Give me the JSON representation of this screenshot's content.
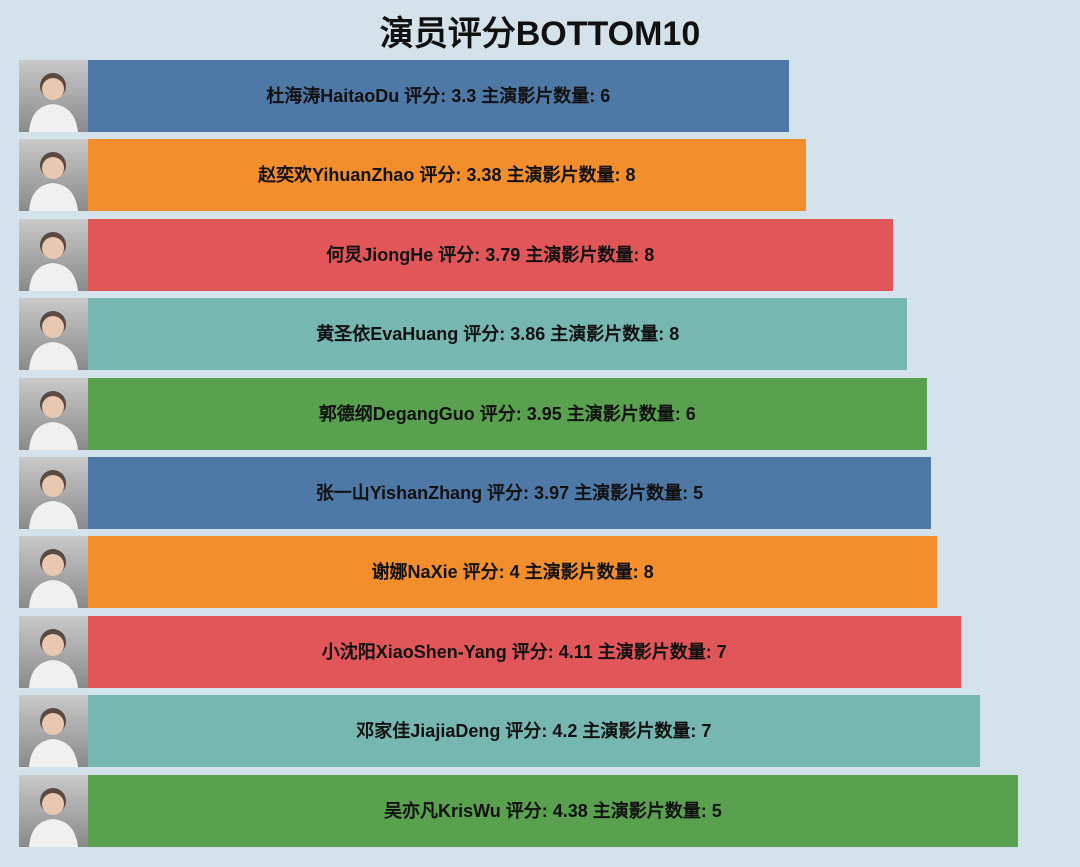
{
  "chart_data": {
    "type": "bar",
    "orientation": "horizontal",
    "title": "演员评分BOTTOM10",
    "xlim": [
      0,
      4.38
    ],
    "grid": false,
    "colors": [
      "#4e79a7",
      "#f28e2b",
      "#e15759",
      "#76b7b2",
      "#59a14f"
    ],
    "items": [
      {
        "name": "杜海涛HaitaoDu",
        "rating": 3.3,
        "movies": 6,
        "label": "杜海涛HaitaoDu 评分: 3.3 主演影片数量: 6",
        "color": "#4e79a7"
      },
      {
        "name": "赵奕欢YihuanZhao",
        "rating": 3.38,
        "movies": 8,
        "label": "赵奕欢YihuanZhao 评分: 3.38 主演影片数量: 8",
        "color": "#f28e2b"
      },
      {
        "name": "何炅JiongHe",
        "rating": 3.79,
        "movies": 8,
        "label": "何炅JiongHe 评分: 3.79 主演影片数量: 8",
        "color": "#e15759"
      },
      {
        "name": "黄圣依EvaHuang",
        "rating": 3.86,
        "movies": 8,
        "label": "黄圣依EvaHuang 评分: 3.86 主演影片数量: 8",
        "color": "#76b7b2"
      },
      {
        "name": "郭德纲DegangGuo",
        "rating": 3.95,
        "movies": 6,
        "label": "郭德纲DegangGuo 评分: 3.95 主演影片数量: 6",
        "color": "#59a14f"
      },
      {
        "name": "张一山YishanZhang",
        "rating": 3.97,
        "movies": 5,
        "label": "张一山YishanZhang 评分: 3.97 主演影片数量: 5",
        "color": "#4e79a7"
      },
      {
        "name": "谢娜NaXie",
        "rating": 4,
        "movies": 8,
        "label": "谢娜NaXie 评分: 4 主演影片数量: 8",
        "color": "#f28e2b"
      },
      {
        "name": "小沈阳XiaoShen-Yang",
        "rating": 4.11,
        "movies": 7,
        "label": "小沈阳XiaoShen-Yang 评分: 4.11 主演影片数量: 7",
        "color": "#e15759"
      },
      {
        "name": "邓家佳JiajiaDeng",
        "rating": 4.2,
        "movies": 7,
        "label": "邓家佳JiajiaDeng 评分: 4.2 主演影片数量: 7",
        "color": "#76b7b2"
      },
      {
        "name": "吴亦凡KrisWu",
        "rating": 4.38,
        "movies": 5,
        "label": "吴亦凡KrisWu 评分: 4.38 主演影片数量: 5",
        "color": "#59a14f"
      }
    ]
  }
}
